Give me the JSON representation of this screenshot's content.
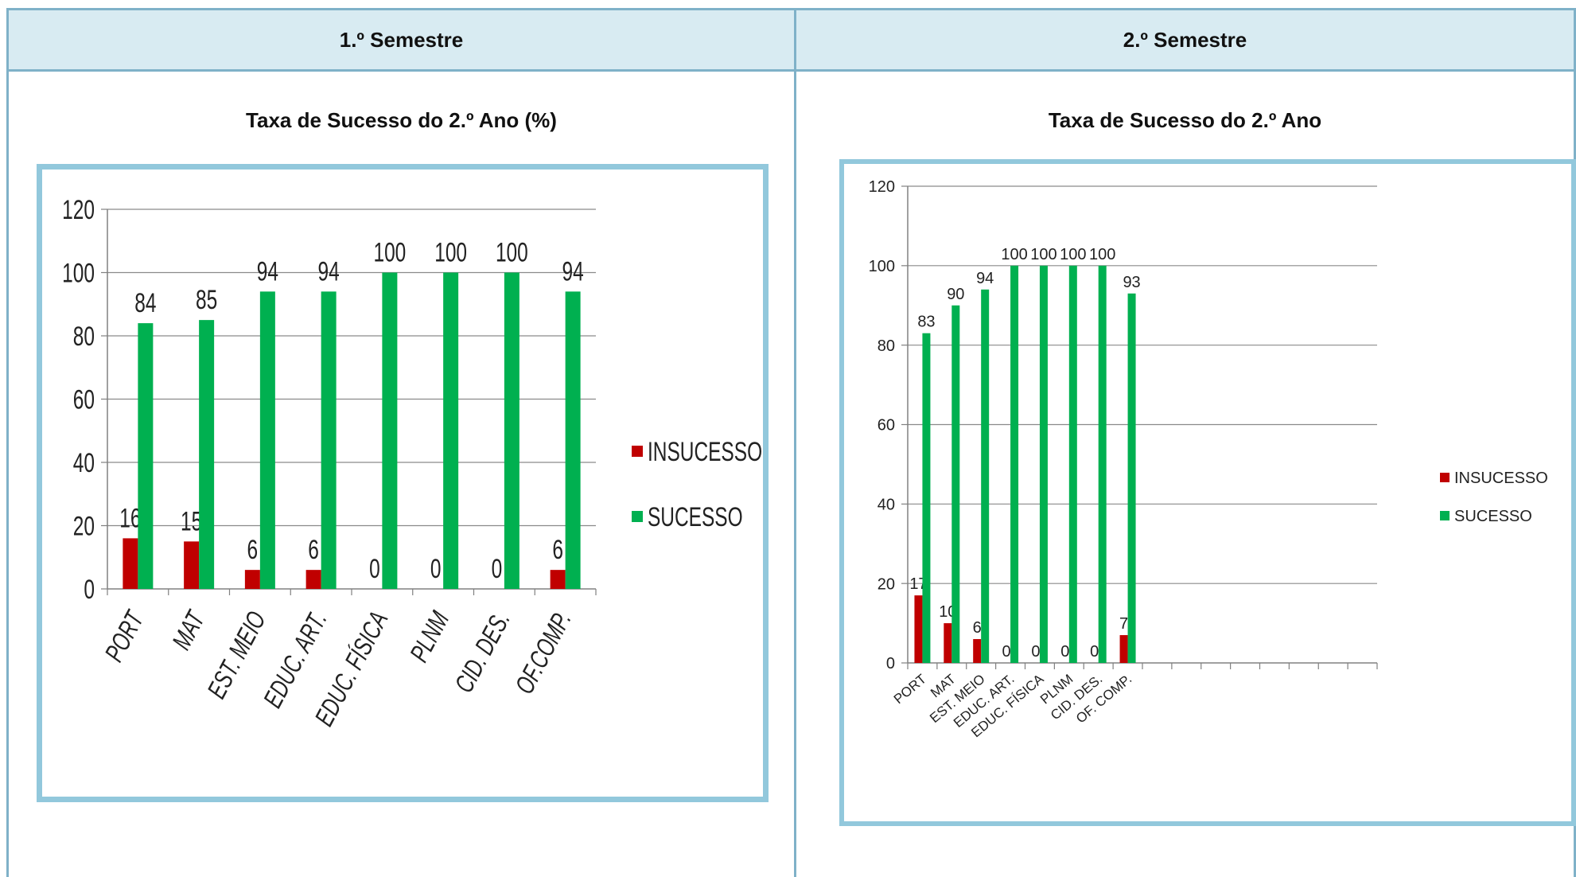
{
  "header": {
    "sem1": "1.º Semestre",
    "sem2": "2.º Semestre"
  },
  "colors": {
    "insucesso": "#c00000",
    "sucesso": "#00b050",
    "header_bg": "#d8ebf2",
    "border": "#7fb1c8",
    "chart_border": "#92c8dc"
  },
  "chart_data": [
    {
      "type": "bar",
      "title": "Taxa de Sucesso do 2.º Ano (%)",
      "categories": [
        "PORT",
        "MAT",
        "EST. MEIO",
        "EDUC. ART.",
        "EDUC. FÍSICA",
        "PLNM",
        "CID. DES.",
        "OF.COMP."
      ],
      "series": [
        {
          "name": "INSUCESSO",
          "values": [
            16,
            15,
            6,
            6,
            0,
            0,
            0,
            6
          ],
          "labels": [
            "16",
            "15",
            "6",
            "6",
            "0",
            "0",
            "0",
            "6"
          ]
        },
        {
          "name": "SUCESSO",
          "values": [
            84,
            85,
            94,
            94,
            100,
            100,
            100,
            94
          ],
          "labels": [
            "84",
            "85",
            "94",
            "94",
            "100",
            "100",
            "100",
            "94"
          ]
        }
      ],
      "yticks": [
        "0",
        "20",
        "40",
        "60",
        "80",
        "100",
        "120"
      ],
      "ylim": [
        0,
        120
      ],
      "legend": "right",
      "grid": true
    },
    {
      "type": "bar",
      "title": "Taxa de Sucesso do 2.º Ano",
      "categories": [
        "PORT",
        "MAT",
        "EST. MEIO",
        "EDUC. ART.",
        "EDUC. FÍSICA",
        "PLNM",
        "CID. DES.",
        "OF. COMP."
      ],
      "series": [
        {
          "name": "INSUCESSO",
          "values": [
            17,
            10,
            6,
            0,
            0,
            0,
            0,
            7
          ],
          "labels": [
            "17",
            "10",
            "6",
            "0",
            "0",
            "0",
            "0",
            "7"
          ]
        },
        {
          "name": "SUCESSO",
          "values": [
            83,
            90,
            94,
            100,
            100,
            100,
            100,
            93
          ],
          "labels": [
            "83",
            "90",
            "94",
            "100",
            "100",
            "100",
            "100",
            "93"
          ]
        }
      ],
      "yticks": [
        "0",
        "20",
        "40",
        "60",
        "80",
        "100",
        "120"
      ],
      "ylim": [
        0,
        120
      ],
      "legend": "right",
      "grid": true,
      "empty_category_slots": 8
    }
  ]
}
